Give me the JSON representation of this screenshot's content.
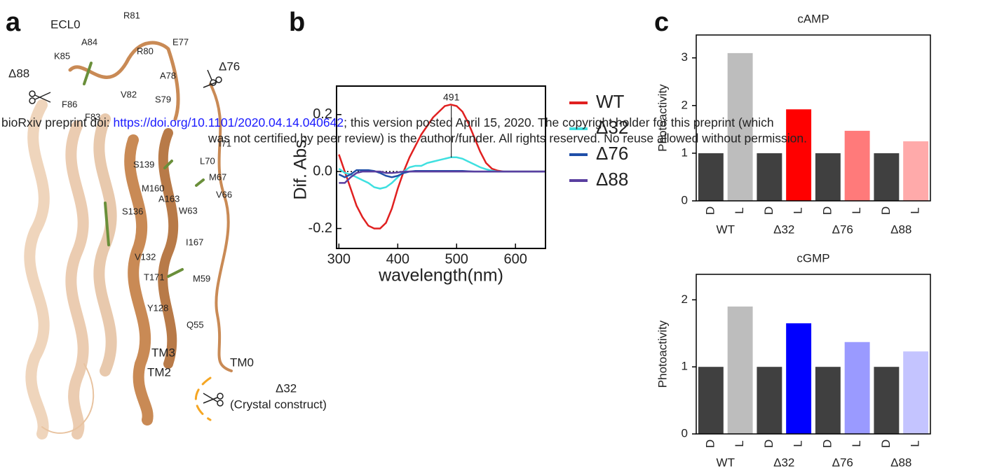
{
  "panel_labels": [
    "a",
    "b",
    "c"
  ],
  "structure": {
    "labels": [
      "ECL0",
      "R81",
      "A84",
      "K85",
      "R80",
      "E77",
      "Δ88",
      "A78",
      "Δ76",
      "F86",
      "V82",
      "S79",
      "F83",
      "I71",
      "L70",
      "S139",
      "M67",
      "M160",
      "V66",
      "A163",
      "S136",
      "W63",
      "I167",
      "V132",
      "M59",
      "T171",
      "Y128",
      "Q55",
      "TM3",
      "TM2",
      "TM0",
      "Δ32",
      "(Crystal construct)"
    ]
  },
  "watermark": {
    "prefix": "bioRxiv preprint doi: ",
    "link": "https://doi.org/10.1101/2020.04.14.040642",
    "suffix": "; this version posted April 15, 2020. The copyright holder for this preprint (which",
    "line2": "was not certified by peer review) is the author/funder. All rights reserved. No reuse allowed without permission."
  },
  "chart_data": [
    {
      "type": "line",
      "x_label": "wavelength(nm)",
      "y_label": "Dif. Abs.",
      "x": [
        300,
        310,
        320,
        330,
        340,
        350,
        360,
        370,
        380,
        390,
        400,
        410,
        420,
        430,
        440,
        450,
        460,
        470,
        480,
        490,
        500,
        510,
        520,
        530,
        540,
        550,
        560,
        570,
        580,
        590,
        600,
        610,
        620,
        630,
        640,
        650
      ],
      "series": [
        {
          "name": "WT",
          "color": "#e02020",
          "values": [
            0.06,
            0.0,
            -0.06,
            -0.12,
            -0.16,
            -0.19,
            -0.2,
            -0.2,
            -0.18,
            -0.13,
            -0.06,
            0.0,
            0.05,
            0.09,
            0.13,
            0.16,
            0.19,
            0.21,
            0.23,
            0.235,
            0.23,
            0.21,
            0.17,
            0.12,
            0.07,
            0.03,
            0.01,
            0.003,
            0,
            0,
            0,
            0,
            0,
            0,
            0,
            0
          ]
        },
        {
          "name": "Δ32",
          "color": "#3fe0e0",
          "values": [
            0.01,
            -0.005,
            -0.01,
            -0.02,
            -0.03,
            -0.04,
            -0.055,
            -0.06,
            -0.055,
            -0.04,
            -0.02,
            0.0,
            0.015,
            0.02,
            0.02,
            0.03,
            0.035,
            0.04,
            0.045,
            0.05,
            0.05,
            0.045,
            0.035,
            0.025,
            0.015,
            0.008,
            0.003,
            0,
            0,
            0,
            0,
            0,
            0,
            0,
            0,
            0
          ]
        },
        {
          "name": "Δ76",
          "color": "#1f4fa8",
          "values": [
            -0.01,
            -0.02,
            -0.01,
            0.005,
            0.005,
            0.005,
            0.002,
            -0.005,
            -0.015,
            -0.02,
            -0.015,
            -0.005,
            0.0,
            0.002,
            0.002,
            0.002,
            0.002,
            0.002,
            0.002,
            0.002,
            0.002,
            0.002,
            0.001,
            0,
            0,
            0,
            0,
            0,
            0,
            0,
            0,
            0,
            0,
            0,
            0,
            0
          ]
        },
        {
          "name": "Δ88",
          "color": "#5a3fa0",
          "values": [
            -0.04,
            -0.04,
            -0.02,
            -0.005,
            0.0,
            0.0,
            0.0,
            0.0,
            -0.005,
            -0.005,
            -0.003,
            0,
            0,
            0,
            0,
            0,
            0,
            0,
            0,
            0,
            0,
            0,
            0,
            0,
            0,
            0,
            0,
            0,
            0,
            0,
            0,
            0,
            0,
            0,
            0,
            0
          ]
        }
      ],
      "annotation": {
        "text": "491",
        "x": 491
      },
      "xlim": [
        296,
        651
      ],
      "xticks": [
        300,
        400,
        500,
        600
      ],
      "ylim": [
        -0.27,
        0.3
      ],
      "yticks": [
        -0.2,
        {
          "value": 0,
          "label": "0.0"
        },
        0.2
      ]
    },
    {
      "type": "bar",
      "title": "cAMP",
      "y_label": "Photoactivity",
      "categories": [
        "D",
        "L",
        "D",
        "L",
        "D",
        "L",
        "D",
        "L"
      ],
      "groups": [
        "WT",
        "Δ32",
        "Δ76",
        "Δ88"
      ],
      "values": [
        1,
        3.1,
        1,
        1.92,
        1,
        1.47,
        1,
        1.25
      ],
      "colors": [
        "#404040",
        "#bdbdbd",
        "#404040",
        "#ff0000",
        "#404040",
        "#ff7a7a",
        "#404040",
        "#ffaaaa"
      ],
      "ylim": [
        0,
        3.48
      ],
      "yticks": [
        0,
        1,
        2,
        3
      ]
    },
    {
      "type": "bar",
      "title": "cGMP",
      "y_label": "Photoactivity",
      "categories": [
        "D",
        "L",
        "D",
        "L",
        "D",
        "L",
        "D",
        "L"
      ],
      "groups": [
        "WT",
        "Δ32",
        "Δ76",
        "Δ88"
      ],
      "values": [
        1,
        1.9,
        1,
        1.65,
        1,
        1.37,
        1,
        1.23
      ],
      "colors": [
        "#404040",
        "#bdbdbd",
        "#404040",
        "#0000ff",
        "#404040",
        "#9a9aff",
        "#404040",
        "#c4c4ff"
      ],
      "ylim": [
        0,
        2.38
      ],
      "yticks": [
        0,
        1,
        2
      ]
    }
  ]
}
